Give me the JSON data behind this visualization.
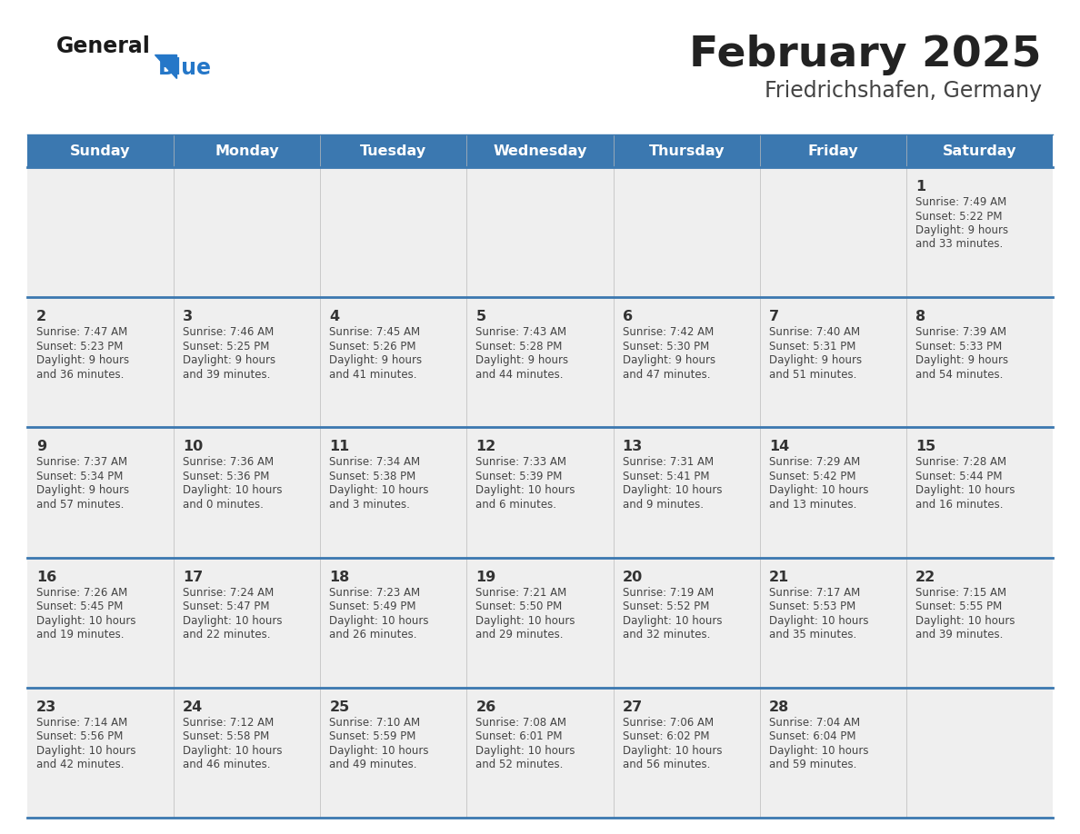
{
  "title": "February 2025",
  "subtitle": "Friedrichshafen, Germany",
  "days_of_week": [
    "Sunday",
    "Monday",
    "Tuesday",
    "Wednesday",
    "Thursday",
    "Friday",
    "Saturday"
  ],
  "header_bg": "#3b78b0",
  "header_text_color": "#ffffff",
  "cell_bg_odd": "#efefef",
  "cell_bg_even": "#f7f7f7",
  "divider_color": "#3b78b0",
  "text_color": "#444444",
  "day_num_color": "#333333",
  "logo_general_color": "#1a1a1a",
  "logo_blue_color": "#2577c8",
  "title_color": "#222222",
  "subtitle_color": "#444444",
  "calendar_data": [
    [
      null,
      null,
      null,
      null,
      null,
      null,
      {
        "day": 1,
        "sunrise": "7:49 AM",
        "sunset": "5:22 PM",
        "daylight": "9 hours",
        "daylight2": "and 33 minutes."
      }
    ],
    [
      {
        "day": 2,
        "sunrise": "7:47 AM",
        "sunset": "5:23 PM",
        "daylight": "9 hours",
        "daylight2": "and 36 minutes."
      },
      {
        "day": 3,
        "sunrise": "7:46 AM",
        "sunset": "5:25 PM",
        "daylight": "9 hours",
        "daylight2": "and 39 minutes."
      },
      {
        "day": 4,
        "sunrise": "7:45 AM",
        "sunset": "5:26 PM",
        "daylight": "9 hours",
        "daylight2": "and 41 minutes."
      },
      {
        "day": 5,
        "sunrise": "7:43 AM",
        "sunset": "5:28 PM",
        "daylight": "9 hours",
        "daylight2": "and 44 minutes."
      },
      {
        "day": 6,
        "sunrise": "7:42 AM",
        "sunset": "5:30 PM",
        "daylight": "9 hours",
        "daylight2": "and 47 minutes."
      },
      {
        "day": 7,
        "sunrise": "7:40 AM",
        "sunset": "5:31 PM",
        "daylight": "9 hours",
        "daylight2": "and 51 minutes."
      },
      {
        "day": 8,
        "sunrise": "7:39 AM",
        "sunset": "5:33 PM",
        "daylight": "9 hours",
        "daylight2": "and 54 minutes."
      }
    ],
    [
      {
        "day": 9,
        "sunrise": "7:37 AM",
        "sunset": "5:34 PM",
        "daylight": "9 hours",
        "daylight2": "and 57 minutes."
      },
      {
        "day": 10,
        "sunrise": "7:36 AM",
        "sunset": "5:36 PM",
        "daylight": "10 hours",
        "daylight2": "and 0 minutes."
      },
      {
        "day": 11,
        "sunrise": "7:34 AM",
        "sunset": "5:38 PM",
        "daylight": "10 hours",
        "daylight2": "and 3 minutes."
      },
      {
        "day": 12,
        "sunrise": "7:33 AM",
        "sunset": "5:39 PM",
        "daylight": "10 hours",
        "daylight2": "and 6 minutes."
      },
      {
        "day": 13,
        "sunrise": "7:31 AM",
        "sunset": "5:41 PM",
        "daylight": "10 hours",
        "daylight2": "and 9 minutes."
      },
      {
        "day": 14,
        "sunrise": "7:29 AM",
        "sunset": "5:42 PM",
        "daylight": "10 hours",
        "daylight2": "and 13 minutes."
      },
      {
        "day": 15,
        "sunrise": "7:28 AM",
        "sunset": "5:44 PM",
        "daylight": "10 hours",
        "daylight2": "and 16 minutes."
      }
    ],
    [
      {
        "day": 16,
        "sunrise": "7:26 AM",
        "sunset": "5:45 PM",
        "daylight": "10 hours",
        "daylight2": "and 19 minutes."
      },
      {
        "day": 17,
        "sunrise": "7:24 AM",
        "sunset": "5:47 PM",
        "daylight": "10 hours",
        "daylight2": "and 22 minutes."
      },
      {
        "day": 18,
        "sunrise": "7:23 AM",
        "sunset": "5:49 PM",
        "daylight": "10 hours",
        "daylight2": "and 26 minutes."
      },
      {
        "day": 19,
        "sunrise": "7:21 AM",
        "sunset": "5:50 PM",
        "daylight": "10 hours",
        "daylight2": "and 29 minutes."
      },
      {
        "day": 20,
        "sunrise": "7:19 AM",
        "sunset": "5:52 PM",
        "daylight": "10 hours",
        "daylight2": "and 32 minutes."
      },
      {
        "day": 21,
        "sunrise": "7:17 AM",
        "sunset": "5:53 PM",
        "daylight": "10 hours",
        "daylight2": "and 35 minutes."
      },
      {
        "day": 22,
        "sunrise": "7:15 AM",
        "sunset": "5:55 PM",
        "daylight": "10 hours",
        "daylight2": "and 39 minutes."
      }
    ],
    [
      {
        "day": 23,
        "sunrise": "7:14 AM",
        "sunset": "5:56 PM",
        "daylight": "10 hours",
        "daylight2": "and 42 minutes."
      },
      {
        "day": 24,
        "sunrise": "7:12 AM",
        "sunset": "5:58 PM",
        "daylight": "10 hours",
        "daylight2": "and 46 minutes."
      },
      {
        "day": 25,
        "sunrise": "7:10 AM",
        "sunset": "5:59 PM",
        "daylight": "10 hours",
        "daylight2": "and 49 minutes."
      },
      {
        "day": 26,
        "sunrise": "7:08 AM",
        "sunset": "6:01 PM",
        "daylight": "10 hours",
        "daylight2": "and 52 minutes."
      },
      {
        "day": 27,
        "sunrise": "7:06 AM",
        "sunset": "6:02 PM",
        "daylight": "10 hours",
        "daylight2": "and 56 minutes."
      },
      {
        "day": 28,
        "sunrise": "7:04 AM",
        "sunset": "6:04 PM",
        "daylight": "10 hours",
        "daylight2": "and 59 minutes."
      },
      null
    ]
  ]
}
